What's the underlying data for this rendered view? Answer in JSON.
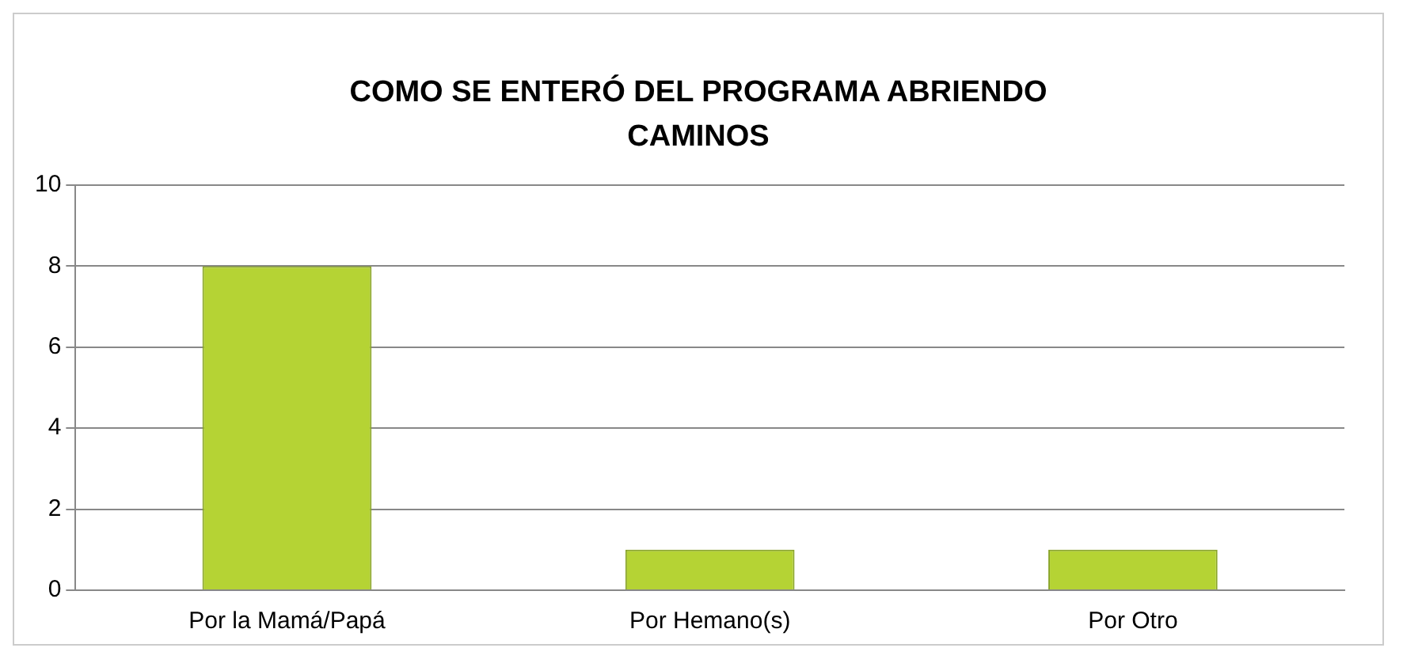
{
  "chart_data": {
    "type": "bar",
    "title": "COMO SE ENTERÓ DEL PROGRAMA ABRIENDO CAMINOS",
    "categories": [
      "Por la Mamá/Papá",
      "Por Hemano(s)",
      "Por Otro"
    ],
    "values": [
      8,
      1,
      1
    ],
    "color": "#b5d334",
    "ylim": [
      0,
      10
    ],
    "yticks": [
      0,
      2,
      4,
      6,
      8,
      10
    ],
    "grid": "y",
    "legend": false
  }
}
